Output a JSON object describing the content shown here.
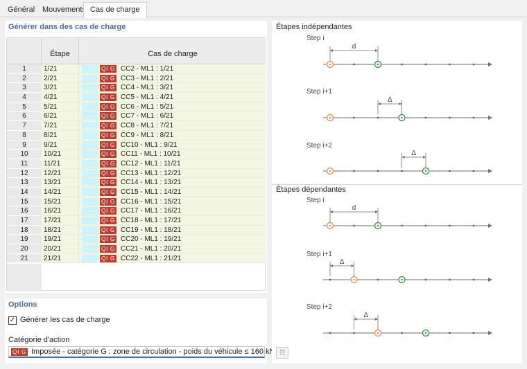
{
  "tabs": [
    {
      "label": "Général",
      "active": false
    },
    {
      "label": "Mouvements",
      "active": false
    },
    {
      "label": "Cas de charge",
      "active": true
    }
  ],
  "generate_section": {
    "title": "Générer dans des cas de charge",
    "columns": [
      "Étape",
      "Cas de charge"
    ],
    "badge": "QI G",
    "rows": [
      {
        "n": "1",
        "etape": "1/21",
        "cas": "CC2 - ML1 : 1/21"
      },
      {
        "n": "2",
        "etape": "2/21",
        "cas": "CC3 - ML1 : 2/21"
      },
      {
        "n": "3",
        "etape": "3/21",
        "cas": "CC4 - ML1 : 3/21"
      },
      {
        "n": "4",
        "etape": "4/21",
        "cas": "CC5 - ML1 : 4/21"
      },
      {
        "n": "5",
        "etape": "5/21",
        "cas": "CC6 - ML1 : 5/21"
      },
      {
        "n": "6",
        "etape": "6/21",
        "cas": "CC7 - ML1 : 6/21"
      },
      {
        "n": "7",
        "etape": "7/21",
        "cas": "CC8 - ML1 : 7/21"
      },
      {
        "n": "8",
        "etape": "8/21",
        "cas": "CC9 - ML1 : 8/21"
      },
      {
        "n": "9",
        "etape": "9/21",
        "cas": "CC10 - ML1 : 9/21"
      },
      {
        "n": "10",
        "etape": "10/21",
        "cas": "CC11 - ML1 : 10/21"
      },
      {
        "n": "11",
        "etape": "11/21",
        "cas": "CC12 - ML1 : 11/21"
      },
      {
        "n": "12",
        "etape": "12/21",
        "cas": "CC13 - ML1 : 12/21"
      },
      {
        "n": "13",
        "etape": "13/21",
        "cas": "CC14 - ML1 : 13/21"
      },
      {
        "n": "14",
        "etape": "14/21",
        "cas": "CC15 - ML1 : 14/21"
      },
      {
        "n": "15",
        "etape": "15/21",
        "cas": "CC16 - ML1 : 15/21"
      },
      {
        "n": "16",
        "etape": "16/21",
        "cas": "CC17 - ML1 : 16/21"
      },
      {
        "n": "17",
        "etape": "17/21",
        "cas": "CC18 - ML1 : 17/21"
      },
      {
        "n": "18",
        "etape": "18/21",
        "cas": "CC19 - ML1 : 18/21"
      },
      {
        "n": "19",
        "etape": "19/21",
        "cas": "CC20 - ML1 : 19/21"
      },
      {
        "n": "20",
        "etape": "20/21",
        "cas": "CC21 - ML1 : 20/21"
      },
      {
        "n": "21",
        "etape": "21/21",
        "cas": "CC22 - ML1 : 21/21"
      }
    ]
  },
  "options": {
    "title": "Options",
    "generate_label": "Générer les cas de charge",
    "generate_checked": true,
    "category_label": "Catégorie d'action",
    "category_badge": "QI G",
    "category_value": "Imposée - catégorie G : zone de circulation - poids du véhicule ≤ 160 kN"
  },
  "diagram": {
    "independent_title": "Étapes indépendantes",
    "dependent_title": "Étapes dépendantes",
    "step_labels": [
      "Step i",
      "Step i+1",
      "Step i+2"
    ],
    "dist_d": "d",
    "dist_delta": "Δ",
    "colors": {
      "start": "#e8884a",
      "end": "#2e8b3e",
      "dot": "#c0392b",
      "line": "#6e6e6e"
    }
  },
  "icons": {
    "settings_button": "diagram-settings-icon"
  }
}
